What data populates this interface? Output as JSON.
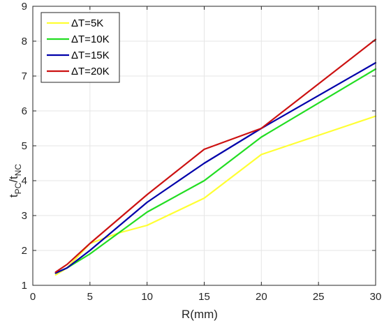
{
  "chart_data": {
    "type": "line",
    "xlabel": "R(mm)",
    "ylabel": "t_PC/t_NC",
    "ylabel_main": "t",
    "ylabel_sub1": "PC",
    "ylabel_mid": "/t",
    "ylabel_sub2": "NC",
    "xlim": [
      0,
      30
    ],
    "ylim": [
      1,
      9
    ],
    "xticks": [
      0,
      5,
      10,
      15,
      20,
      25,
      30
    ],
    "yticks": [
      1,
      2,
      3,
      4,
      5,
      6,
      7,
      8,
      9
    ],
    "grid": true,
    "legend_position": "top-left",
    "series": [
      {
        "name": "ΔT=5K",
        "color": "#ffff33",
        "x": [
          2,
          3,
          5,
          7.5,
          10,
          15,
          20,
          30
        ],
        "y": [
          1.3,
          1.5,
          2.2,
          2.5,
          2.72,
          3.5,
          4.75,
          5.85
        ]
      },
      {
        "name": "ΔT=10K",
        "color": "#22dd22",
        "x": [
          2,
          3,
          5,
          10,
          15,
          20,
          30
        ],
        "y": [
          1.35,
          1.5,
          1.9,
          3.1,
          4.0,
          5.25,
          7.2
        ]
      },
      {
        "name": "ΔT=15K",
        "color": "#0000aa",
        "x": [
          2,
          3,
          5,
          10,
          15,
          20,
          30
        ],
        "y": [
          1.35,
          1.5,
          2.0,
          3.38,
          4.5,
          5.5,
          7.38
        ]
      },
      {
        "name": "ΔT=20K",
        "color": "#cc1111",
        "x": [
          2,
          3,
          5,
          10,
          15,
          20,
          30
        ],
        "y": [
          1.38,
          1.6,
          2.2,
          3.6,
          4.9,
          5.5,
          8.05
        ]
      }
    ]
  }
}
